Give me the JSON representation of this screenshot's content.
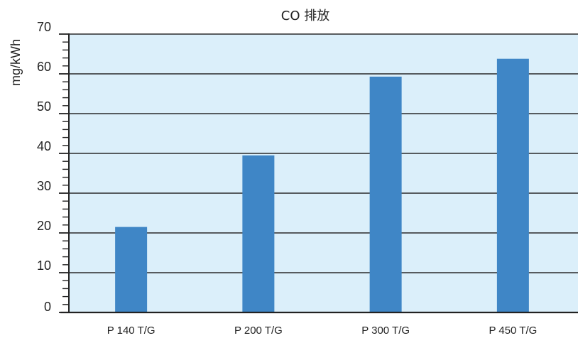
{
  "chart_data": {
    "type": "bar",
    "title": "CO 排放",
    "xlabel": "",
    "ylabel": "mg/kWh",
    "categories": [
      "P 140 T/G",
      "P 200 T/G",
      "P 300 T/G",
      "P 450 T/G"
    ],
    "values": [
      21.5,
      39.5,
      59.3,
      63.8
    ],
    "ylim": [
      0,
      70
    ],
    "yticks": [
      0,
      10,
      20,
      30,
      40,
      50,
      60,
      70
    ],
    "grid": true,
    "colors": {
      "bar": "#3f86c6",
      "plot_background": "#dbeffa",
      "grid": "#2a2a2a",
      "axis": "#222222"
    }
  }
}
